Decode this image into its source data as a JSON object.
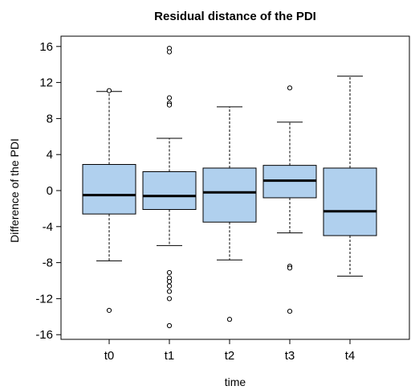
{
  "chart_data": {
    "type": "box",
    "title": "Residual distance of the PDI",
    "xlabel": "time",
    "ylabel": "Difference of the PDI",
    "ylim": [
      -16.5,
      16.5
    ],
    "yticks": [
      -16,
      -12,
      -8,
      -4,
      0,
      4,
      8,
      12,
      16
    ],
    "yticks_text": [
      "-16",
      "-12",
      "-8",
      "-4",
      "0",
      "4",
      "8",
      "12",
      "16"
    ],
    "categories": [
      "t0",
      "t1",
      "t2",
      "t3",
      "t4"
    ],
    "box_color": "#b0d0ee",
    "boxes": [
      {
        "category": "t0",
        "whisker_low": -7.8,
        "q1": -2.6,
        "median": -0.5,
        "q3": 2.9,
        "whisker_high": 11.0,
        "outliers": [
          11.1,
          -13.3
        ]
      },
      {
        "category": "t1",
        "whisker_low": -6.1,
        "q1": -2.1,
        "median": -0.6,
        "q3": 2.1,
        "whisker_high": 5.8,
        "outliers": [
          15.8,
          15.4,
          10.3,
          9.7,
          9.5,
          -9.1,
          -9.7,
          -10.1,
          -10.6,
          -11.2,
          -12.0,
          -15.0
        ]
      },
      {
        "category": "t2",
        "whisker_low": -7.7,
        "q1": -3.5,
        "median": -0.2,
        "q3": 2.5,
        "whisker_high": 9.3,
        "outliers": [
          -14.3
        ]
      },
      {
        "category": "t3",
        "whisker_low": -4.7,
        "q1": -0.8,
        "median": 1.1,
        "q3": 2.8,
        "whisker_high": 7.6,
        "outliers": [
          11.4,
          -8.4,
          -8.6,
          -13.4
        ]
      },
      {
        "category": "t4",
        "whisker_low": -9.5,
        "q1": -5.0,
        "median": -2.3,
        "q3": 2.5,
        "whisker_high": 12.7,
        "outliers": []
      }
    ]
  }
}
